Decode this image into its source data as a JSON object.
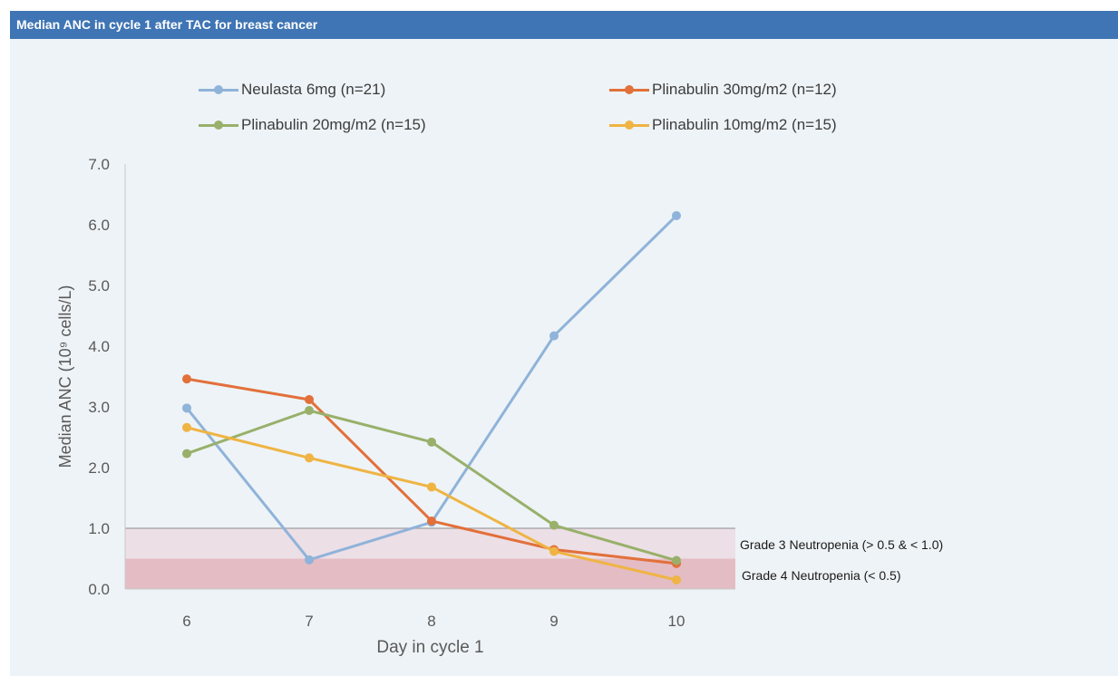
{
  "header": {
    "title": "Median ANC in cycle 1 after TAC for breast cancer"
  },
  "colors": {
    "header_bg": "#3f75b4",
    "panel_bg": "#eef3f7",
    "grade3_band": "#ecdfe6",
    "grade4_band": "#e4bcc4"
  },
  "chart_data": {
    "type": "line",
    "title": "Median ANC in cycle 1 after TAC for breast cancer",
    "xlabel": "Day in cycle 1",
    "ylabel": "Median ANC (10⁹ cells/L)",
    "x": [
      6,
      7,
      8,
      9,
      10
    ],
    "x_tick_labels": [
      "6",
      "7",
      "8",
      "9",
      "10"
    ],
    "ylim": [
      0,
      7
    ],
    "y_tick_labels": [
      "0.0",
      "1.0",
      "2.0",
      "3.0",
      "4.0",
      "5.0",
      "6.0",
      "7.0"
    ],
    "grid": false,
    "legend_position": "top",
    "series": [
      {
        "name": "Neulasta 6mg (n=21)",
        "color": "#8fb3d9",
        "values": [
          2.98,
          0.48,
          1.1,
          4.17,
          6.15
        ]
      },
      {
        "name": "Plinabulin 30mg/m2 (n=12)",
        "color": "#e2703a",
        "values": [
          3.46,
          3.12,
          1.12,
          0.65,
          0.42
        ]
      },
      {
        "name": "Plinabulin 20mg/m2 (n=15)",
        "color": "#98b06a",
        "values": [
          2.23,
          2.94,
          2.42,
          1.05,
          0.47
        ]
      },
      {
        "name": "Plinabulin 10mg/m2 (n=15)",
        "color": "#efb443",
        "values": [
          2.66,
          2.16,
          1.68,
          0.62,
          0.15
        ]
      }
    ],
    "annotations": [
      {
        "label": "Grade 3 Neutropenia (> 0.5 & < 1.0)",
        "y_from": 0.5,
        "y_to": 1.0
      },
      {
        "label": "Grade 4 Neutropenia (< 0.5)",
        "y_from": 0.0,
        "y_to": 0.5
      }
    ]
  }
}
